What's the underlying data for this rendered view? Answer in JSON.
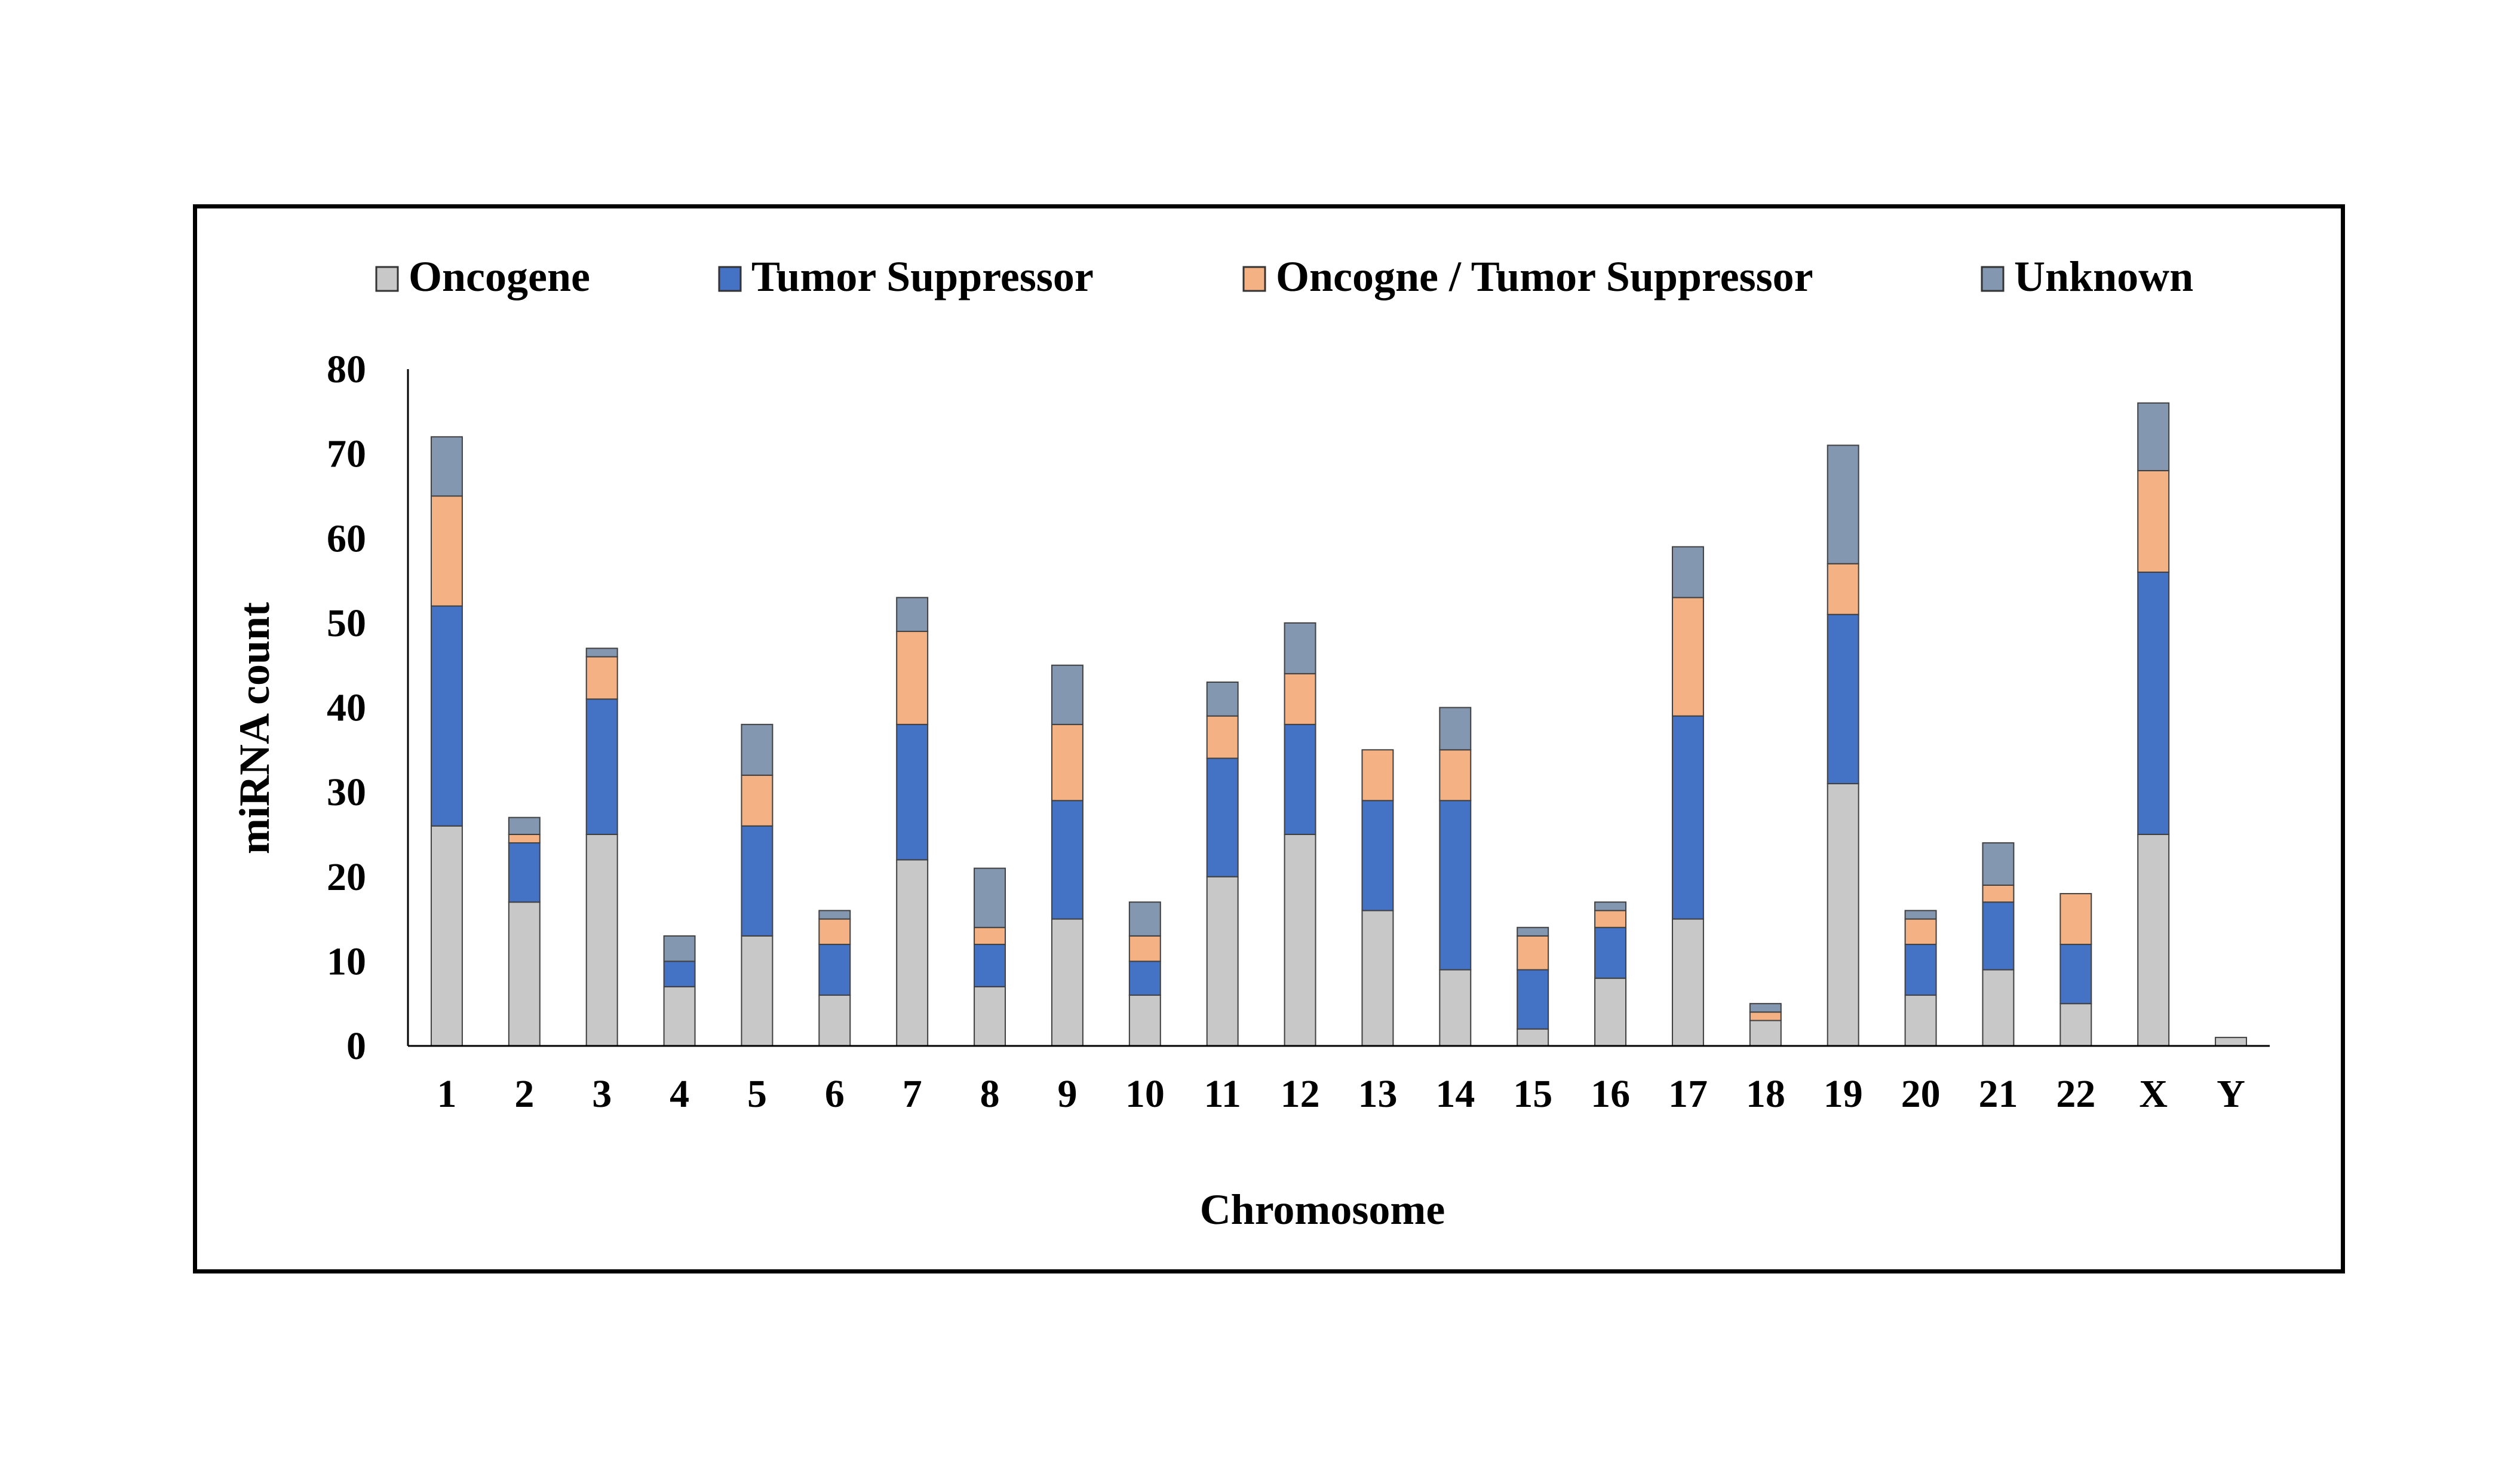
{
  "chart_data": {
    "type": "bar",
    "stacked": true,
    "title": "",
    "xlabel": "Chromosome",
    "ylabel": "miRNA count",
    "ylim": [
      0,
      80
    ],
    "yticks": [
      0,
      10,
      20,
      30,
      40,
      50,
      60,
      70,
      80
    ],
    "grid": false,
    "legend_position": "top",
    "categories": [
      "1",
      "2",
      "3",
      "4",
      "5",
      "6",
      "7",
      "8",
      "9",
      "10",
      "11",
      "12",
      "13",
      "14",
      "15",
      "16",
      "17",
      "18",
      "19",
      "20",
      "21",
      "22",
      "X",
      "Y"
    ],
    "series": [
      {
        "name": "Oncogene",
        "color": "#c8c8c8",
        "values": [
          26,
          17,
          25,
          7,
          13,
          6,
          22,
          7,
          15,
          6,
          20,
          25,
          16,
          9,
          2,
          8,
          15,
          3,
          31,
          6,
          9,
          5,
          25,
          1
        ]
      },
      {
        "name": "Tumor Suppressor",
        "color": "#4472c4",
        "values": [
          26,
          7,
          16,
          3,
          13,
          6,
          16,
          5,
          14,
          4,
          14,
          13,
          13,
          20,
          7,
          6,
          24,
          0,
          20,
          6,
          8,
          7,
          31,
          0
        ]
      },
      {
        "name": "Oncogne / Tumor Suppressor",
        "color": "#f4b183",
        "values": [
          13,
          1,
          5,
          0,
          6,
          3,
          11,
          2,
          9,
          3,
          5,
          6,
          6,
          6,
          4,
          2,
          14,
          1,
          6,
          3,
          2,
          6,
          12,
          0
        ]
      },
      {
        "name": "Unknown",
        "color": "#8497b0",
        "values": [
          7,
          2,
          1,
          3,
          6,
          1,
          4,
          7,
          7,
          4,
          4,
          6,
          0,
          5,
          1,
          1,
          6,
          1,
          14,
          1,
          5,
          0,
          8,
          0
        ]
      }
    ]
  }
}
